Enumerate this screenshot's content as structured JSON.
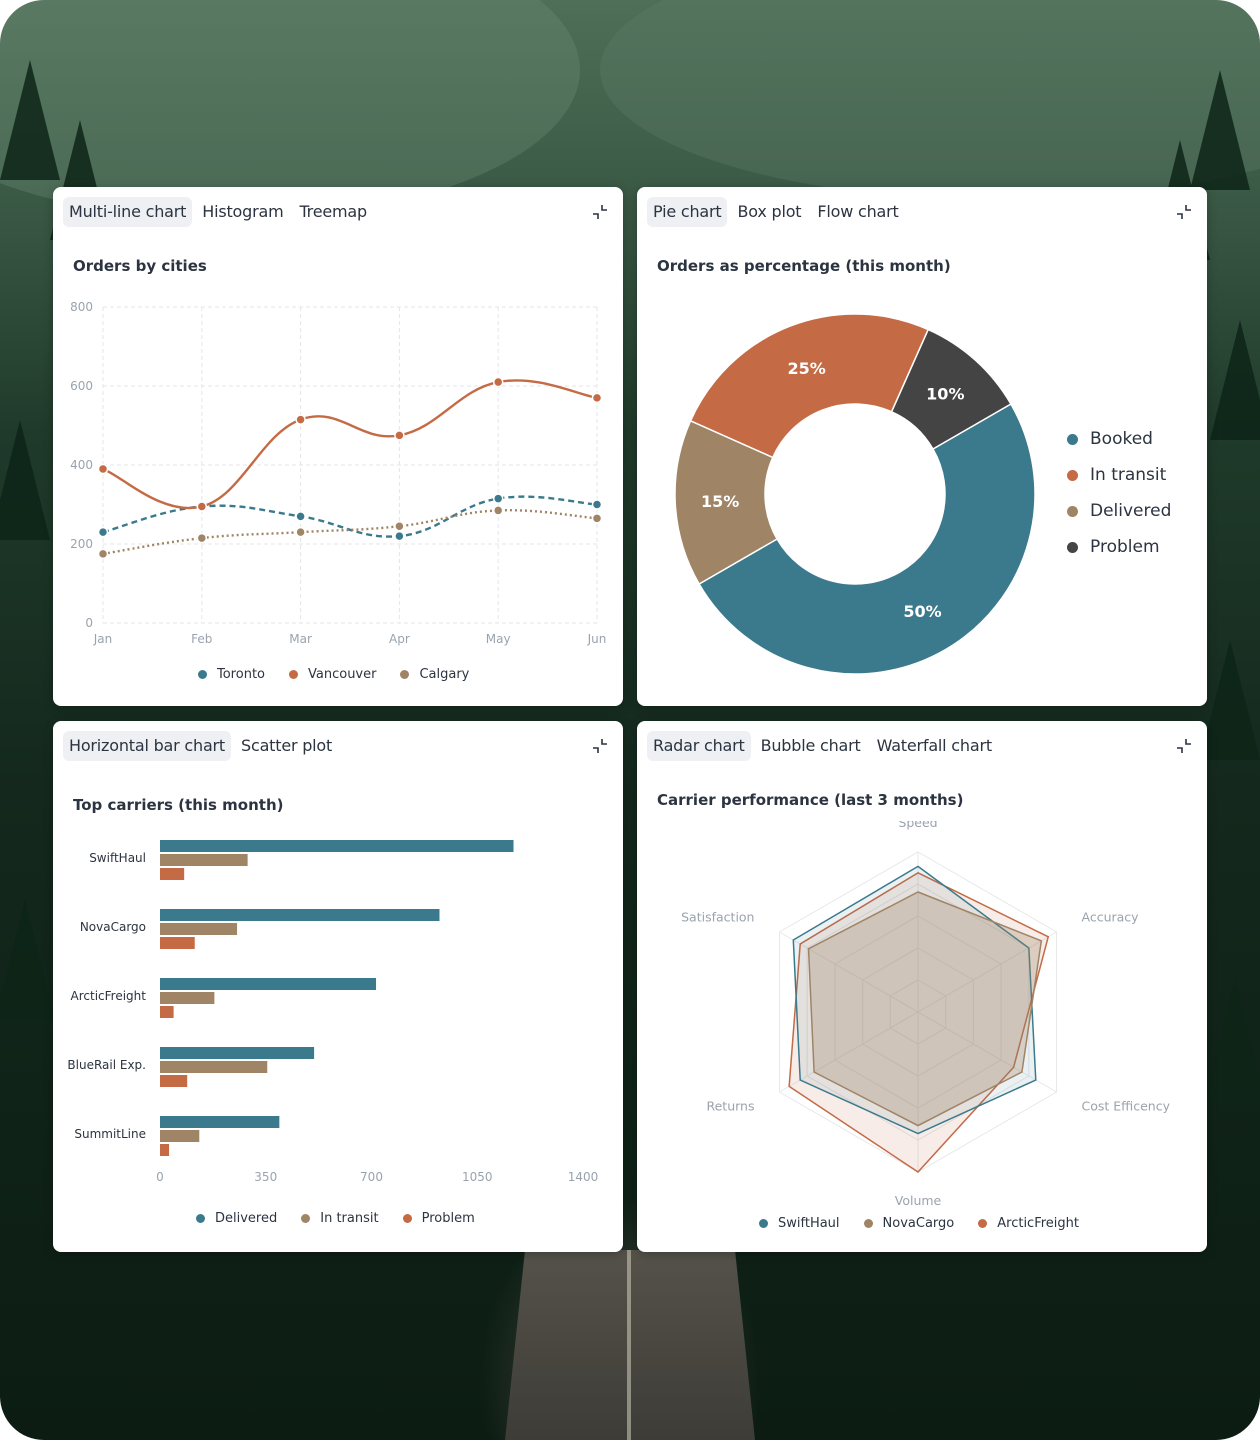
{
  "colors": {
    "teal": "#3a7a8c",
    "orange": "#c46a45",
    "tan": "#a08466",
    "dark": "#444444",
    "axis": "#9aa3ad",
    "grid": "#e3e6ea"
  },
  "cards": {
    "line": {
      "tabs": [
        "Multi-line chart",
        "Histogram",
        "Treemap"
      ],
      "title": "Orders by cities",
      "legend": [
        "Toronto",
        "Vancouver",
        "Calgary"
      ]
    },
    "pie": {
      "tabs": [
        "Pie chart",
        "Box plot",
        "Flow chart"
      ],
      "title": "Orders as percentage (this month)",
      "legend": [
        "Booked",
        "In transit",
        "Delivered",
        "Problem"
      ]
    },
    "bar": {
      "tabs": [
        "Horizontal bar chart",
        "Scatter plot"
      ],
      "title": "Top carriers (this month)",
      "legend": [
        "Delivered",
        "In transit",
        "Problem"
      ]
    },
    "radar": {
      "tabs": [
        "Radar chart",
        "Bubble chart",
        "Waterfall chart"
      ],
      "title": "Carrier performance (last 3 months)",
      "legend": [
        "SwiftHaul",
        "NovaCargo",
        "ArcticFreight"
      ]
    }
  },
  "chart_data": [
    {
      "type": "line",
      "title": "Orders by cities",
      "categories": [
        "Jan",
        "Feb",
        "Mar",
        "Apr",
        "May",
        "Jun"
      ],
      "ylim": [
        0,
        800
      ],
      "yticks": [
        0,
        200,
        400,
        600,
        800
      ],
      "grid": true,
      "legend_position": "bottom",
      "series": [
        {
          "name": "Toronto",
          "values": [
            230,
            295,
            270,
            220,
            315,
            300
          ],
          "style": "dashed"
        },
        {
          "name": "Vancouver",
          "values": [
            390,
            295,
            515,
            475,
            610,
            570
          ],
          "style": "solid"
        },
        {
          "name": "Calgary",
          "values": [
            175,
            215,
            230,
            245,
            285,
            265
          ],
          "style": "dotted"
        }
      ]
    },
    {
      "type": "pie",
      "title": "Orders as percentage (this month)",
      "legend_position": "right",
      "slices": [
        {
          "name": "Booked",
          "value": 50,
          "label": "50%"
        },
        {
          "name": "Delivered",
          "value": 15,
          "label": "15%"
        },
        {
          "name": "In transit",
          "value": 25,
          "label": "25%"
        },
        {
          "name": "Problem",
          "value": 10,
          "label": "10%"
        }
      ]
    },
    {
      "type": "bar",
      "orientation": "horizontal",
      "title": "Top carriers (this month)",
      "categories": [
        "SwiftHaul",
        "NovaCargo",
        "ArcticFreight",
        "BlueRail Exp.",
        "SummitLine"
      ],
      "xlim": [
        0,
        1400
      ],
      "xticks": [
        0,
        350,
        700,
        1050,
        1400
      ],
      "legend_position": "bottom",
      "series": [
        {
          "name": "Delivered",
          "values": [
            1170,
            925,
            715,
            510,
            395
          ]
        },
        {
          "name": "In transit",
          "values": [
            290,
            255,
            180,
            355,
            130
          ]
        },
        {
          "name": "Problem",
          "values": [
            80,
            115,
            45,
            90,
            30
          ]
        }
      ]
    },
    {
      "type": "radar",
      "title": "Carrier performance (last 3 months)",
      "axes": [
        "Speed",
        "Accuracy",
        "Cost Efficency",
        "Volume",
        "Returns",
        "Satisfaction"
      ],
      "max": 10,
      "legend_position": "bottom",
      "series": [
        {
          "name": "SwiftHaul",
          "values": [
            9.1,
            8.0,
            8.5,
            7.6,
            8.5,
            9.0
          ]
        },
        {
          "name": "NovaCargo",
          "values": [
            7.5,
            8.9,
            7.5,
            7.1,
            7.5,
            7.9
          ]
        },
        {
          "name": "ArcticFreight",
          "values": [
            8.7,
            9.4,
            6.9,
            10.0,
            9.3,
            8.5
          ]
        }
      ]
    }
  ]
}
